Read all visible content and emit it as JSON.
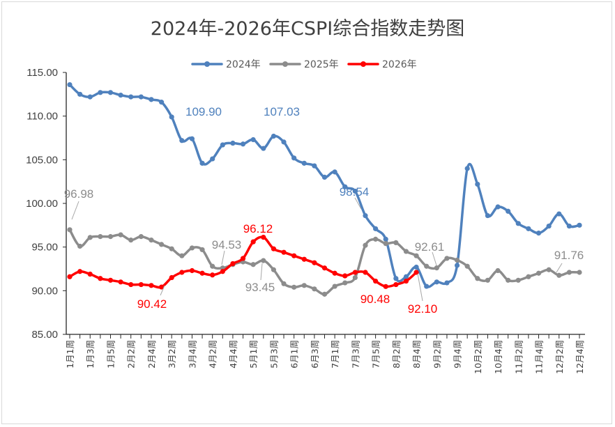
{
  "chart_data": {
    "type": "line",
    "title": "2024年-2026年CSPI综合指数走势图",
    "xlabel": "",
    "ylabel": "",
    "ylim": [
      85,
      115
    ],
    "yticks": [
      "115.00",
      "110.00",
      "105.00",
      "100.00",
      "95.00",
      "90.00",
      "85.00"
    ],
    "legend_position": "top-center",
    "grid": false,
    "x_tick_labels": [
      "1月1周",
      "1月3周",
      "1月5周",
      "2月2周",
      "2月4周",
      "3月2周",
      "3月4周",
      "4月2周",
      "4月4周",
      "5月1周",
      "5月3周",
      "6月1周",
      "6月3周",
      "7月1周",
      "7月3周",
      "7月5周",
      "8月2周",
      "8月4周",
      "9月2周",
      "9月4周",
      "10月2周",
      "10月4周",
      "11月2周",
      "11月4周",
      "12月2周",
      "12月4周"
    ],
    "series": [
      {
        "name": "2024年",
        "color": "#4f81bd",
        "values": [
          113.6,
          112.5,
          112.2,
          112.7,
          112.7,
          112.4,
          112.2,
          112.2,
          111.9,
          111.6,
          109.9,
          107.2,
          107.4,
          104.6,
          105.1,
          106.7,
          106.9,
          106.8,
          107.3,
          106.3,
          107.7,
          107.03,
          105.2,
          104.6,
          104.3,
          103.0,
          103.6,
          101.9,
          101.4,
          98.6,
          97.1,
          95.9,
          91.4,
          91.6,
          92.7,
          90.5,
          91.0,
          90.9,
          92.9,
          104.0,
          102.2,
          98.6,
          99.6,
          99.1,
          97.7,
          97.1,
          96.6,
          97.4,
          98.8,
          97.4,
          97.5
        ]
      },
      {
        "name": "2025年",
        "color": "#8c8c8c",
        "values": [
          96.98,
          95.1,
          96.1,
          96.2,
          96.2,
          96.4,
          95.8,
          96.2,
          95.8,
          95.3,
          94.8,
          94.0,
          94.9,
          94.7,
          92.8,
          92.6,
          93.0,
          93.3,
          93.0,
          93.45,
          92.4,
          90.8,
          90.4,
          90.6,
          90.2,
          89.6,
          90.5,
          90.9,
          91.5,
          95.2,
          95.9,
          95.4,
          95.5,
          94.5,
          94.0,
          92.8,
          92.61,
          93.7,
          93.5,
          92.8,
          91.4,
          91.2,
          92.3,
          91.2,
          91.2,
          91.6,
          92.0,
          92.4,
          91.76,
          92.1,
          92.1
        ]
      },
      {
        "name": "2026年",
        "color": "#ff0000",
        "values": [
          91.6,
          92.2,
          91.9,
          91.4,
          91.2,
          91.0,
          90.7,
          90.7,
          90.6,
          90.42,
          91.5,
          92.1,
          92.3,
          92.0,
          91.8,
          92.2,
          93.1,
          93.7,
          95.6,
          96.12,
          94.8,
          94.4,
          94.0,
          93.6,
          93.2,
          92.6,
          92.0,
          91.7,
          92.1,
          92.1,
          91.1,
          90.48,
          90.7,
          91.1,
          92.1
        ]
      }
    ],
    "annotations": [
      {
        "text": "109.90",
        "color": "#4f81bd"
      },
      {
        "text": "107.03",
        "color": "#4f81bd"
      },
      {
        "text": "98.54",
        "color": "#4f81bd"
      },
      {
        "text": "96.98",
        "color": "#8c8c8c"
      },
      {
        "text": "94.53",
        "color": "#8c8c8c"
      },
      {
        "text": "93.45",
        "color": "#8c8c8c"
      },
      {
        "text": "92.61",
        "color": "#8c8c8c"
      },
      {
        "text": "91.76",
        "color": "#8c8c8c"
      },
      {
        "text": "96.12",
        "color": "#ff0000"
      },
      {
        "text": "90.42",
        "color": "#ff0000"
      },
      {
        "text": "90.48",
        "color": "#ff0000"
      },
      {
        "text": "92.10",
        "color": "#ff0000"
      }
    ]
  }
}
